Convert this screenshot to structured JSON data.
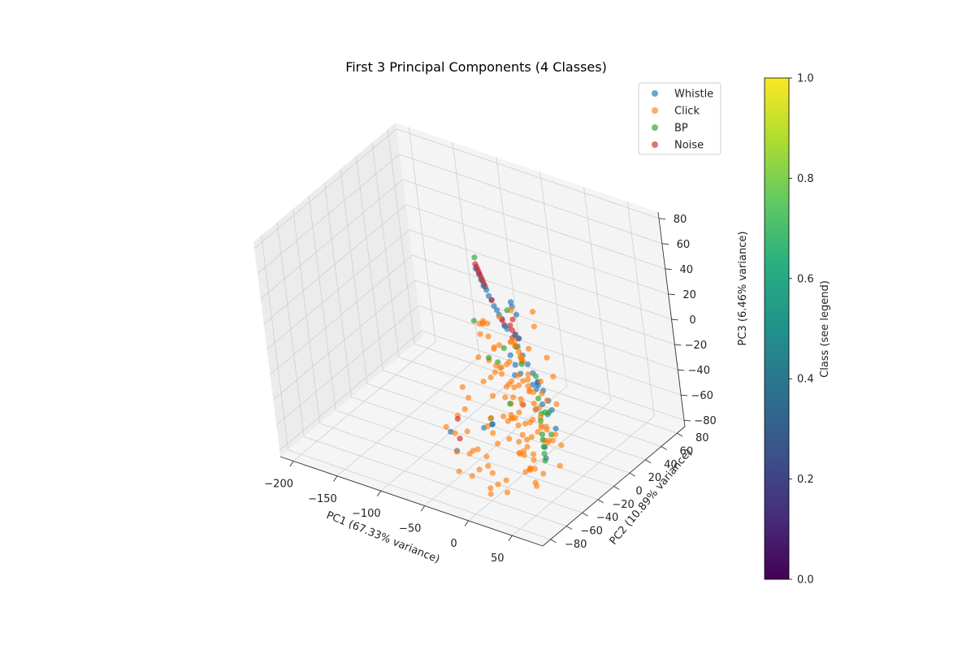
{
  "chart_data": {
    "type": "scatter",
    "projection": "3d",
    "title": "First 3 Principal Components (4 Classes)",
    "xlabel": "PC1 (67.33% variance)",
    "ylabel": "PC2 (10.89% variance)",
    "zlabel": "PC3 (6.46% variance)",
    "xlim": [
      -215,
      85
    ],
    "ylim": [
      -90,
      90
    ],
    "zlim": [
      -85,
      85
    ],
    "x_ticks": [
      -200,
      -150,
      -100,
      -50,
      0,
      50
    ],
    "y_ticks": [
      -80,
      -60,
      -40,
      -20,
      0,
      20,
      40,
      60,
      80
    ],
    "z_ticks": [
      -80,
      -60,
      -40,
      -20,
      0,
      20,
      40,
      60,
      80
    ],
    "grid": true,
    "legend": {
      "position": "top-right",
      "entries": [
        {
          "label": "Whistle",
          "color": "#1f77b4"
        },
        {
          "label": "Click",
          "color": "#ff7f0e"
        },
        {
          "label": "BP",
          "color": "#2ca02c"
        },
        {
          "label": "Noise",
          "color": "#d62728"
        }
      ]
    },
    "colorbar": {
      "label": "Class (see legend)",
      "colormap": "viridis",
      "range": [
        0.0,
        1.0
      ],
      "ticks": [
        "0.0",
        "0.2",
        "0.4",
        "0.6",
        "0.8",
        "1.0"
      ]
    },
    "series": [
      {
        "name": "Whistle",
        "color": "#1f77b4",
        "points": [
          [
            -110,
            60,
            10
          ],
          [
            -100,
            55,
            6
          ],
          [
            -90,
            50,
            3
          ],
          [
            -80,
            45,
            0
          ],
          [
            -70,
            40,
            -3
          ],
          [
            -60,
            35,
            -5
          ],
          [
            -50,
            30,
            -8
          ],
          [
            -40,
            25,
            -10
          ],
          [
            -105,
            58,
            8
          ],
          [
            -95,
            52,
            4
          ],
          [
            -85,
            47,
            1
          ],
          [
            -75,
            42,
            -2
          ],
          [
            -65,
            37,
            -4
          ],
          [
            -30,
            20,
            -12
          ],
          [
            -20,
            15,
            -14
          ],
          [
            -10,
            10,
            -16
          ],
          [
            0,
            5,
            -18
          ],
          [
            10,
            0,
            -20
          ],
          [
            20,
            -5,
            -22
          ],
          [
            30,
            -10,
            -25
          ],
          [
            -5,
            8,
            -30
          ],
          [
            5,
            2,
            -28
          ],
          [
            15,
            -3,
            -35
          ],
          [
            25,
            -8,
            -38
          ],
          [
            35,
            -12,
            -30
          ],
          [
            40,
            -15,
            -42
          ],
          [
            -25,
            10,
            -20
          ],
          [
            -15,
            5,
            -22
          ],
          [
            -45,
            25,
            -25
          ],
          [
            -60,
            -40,
            -55
          ],
          [
            -50,
            -45,
            -65
          ],
          [
            -30,
            -30,
            -50
          ],
          [
            10,
            -30,
            40
          ],
          [
            15,
            -20,
            45
          ],
          [
            5,
            -15,
            50
          ],
          [
            20,
            -25,
            30
          ],
          [
            -10,
            0,
            35
          ],
          [
            0,
            -10,
            20
          ],
          [
            25,
            -40,
            10
          ],
          [
            30,
            -20,
            -5
          ],
          [
            20,
            -10,
            -15
          ],
          [
            35,
            -30,
            -20
          ],
          [
            45,
            -35,
            -45
          ],
          [
            50,
            -40,
            -50
          ],
          [
            -40,
            -10,
            -60
          ],
          [
            -20,
            -30,
            -45
          ]
        ]
      },
      {
        "name": "Click",
        "color": "#ff7f0e",
        "points": [
          [
            -40,
            25,
            -10
          ],
          [
            -35,
            22,
            -11
          ],
          [
            -30,
            19,
            -12
          ],
          [
            -25,
            16,
            -13
          ],
          [
            -20,
            13,
            -14
          ],
          [
            -15,
            10,
            -15
          ],
          [
            0,
            -40,
            45
          ],
          [
            10,
            -35,
            50
          ],
          [
            20,
            -30,
            55
          ],
          [
            30,
            -45,
            40
          ],
          [
            40,
            -50,
            42
          ],
          [
            50,
            -55,
            38
          ],
          [
            45,
            -30,
            48
          ],
          [
            35,
            -20,
            52
          ],
          [
            5,
            -60,
            30
          ],
          [
            15,
            -50,
            35
          ],
          [
            25,
            -60,
            28
          ],
          [
            -5,
            -45,
            38
          ],
          [
            55,
            -65,
            30
          ],
          [
            60,
            -60,
            20
          ],
          [
            10,
            -25,
            25
          ],
          [
            30,
            -35,
            20
          ],
          [
            20,
            -50,
            15
          ],
          [
            40,
            -40,
            10
          ],
          [
            50,
            -45,
            5
          ],
          [
            15,
            -20,
            10
          ],
          [
            -10,
            -20,
            15
          ],
          [
            0,
            -30,
            5
          ],
          [
            45,
            -55,
            0
          ],
          [
            55,
            -50,
            -5
          ],
          [
            40,
            -60,
            -10
          ],
          [
            30,
            -55,
            -15
          ],
          [
            20,
            -45,
            -20
          ],
          [
            35,
            -65,
            -25
          ],
          [
            50,
            -70,
            -30
          ],
          [
            45,
            -60,
            -35
          ],
          [
            60,
            -75,
            -40
          ],
          [
            55,
            -65,
            -45
          ],
          [
            65,
            -70,
            -50
          ],
          [
            40,
            -50,
            -55
          ],
          [
            30,
            -40,
            -40
          ],
          [
            20,
            -30,
            -35
          ],
          [
            10,
            -40,
            -30
          ],
          [
            0,
            -50,
            -25
          ],
          [
            5,
            -35,
            -15
          ],
          [
            25,
            -25,
            -10
          ],
          [
            15,
            -15,
            -5
          ],
          [
            60,
            -45,
            -20
          ],
          [
            70,
            -55,
            -25
          ],
          [
            65,
            -60,
            -15
          ],
          [
            50,
            -35,
            -30
          ],
          [
            45,
            -25,
            -45
          ],
          [
            35,
            -20,
            -50
          ],
          [
            25,
            -15,
            -55
          ],
          [
            55,
            -30,
            -60
          ],
          [
            70,
            -40,
            -35
          ],
          [
            75,
            -50,
            -20
          ],
          [
            60,
            -30,
            -10
          ],
          [
            -60,
            -20,
            -30
          ],
          [
            -50,
            -30,
            -40
          ],
          [
            -40,
            -40,
            -50
          ],
          [
            -30,
            -50,
            -60
          ],
          [
            -20,
            -60,
            -70
          ],
          [
            -10,
            -50,
            -65
          ],
          [
            0,
            -60,
            -75
          ],
          [
            10,
            -70,
            -72
          ],
          [
            -55,
            -40,
            -55
          ],
          [
            -45,
            -50,
            -62
          ],
          [
            -35,
            -60,
            -70
          ],
          [
            -25,
            -45,
            -58
          ],
          [
            -15,
            -35,
            -48
          ],
          [
            -65,
            -10,
            -45
          ],
          [
            -70,
            -20,
            -55
          ],
          [
            -75,
            -30,
            -60
          ],
          [
            -55,
            0,
            -35
          ],
          [
            -45,
            5,
            -28
          ],
          [
            -35,
            10,
            -22
          ],
          [
            -25,
            0,
            -30
          ],
          [
            -15,
            -10,
            -38
          ],
          [
            -5,
            -20,
            -42
          ],
          [
            5,
            -10,
            -48
          ],
          [
            15,
            -20,
            -52
          ],
          [
            25,
            -30,
            -58
          ],
          [
            35,
            -40,
            -62
          ],
          [
            45,
            -50,
            -68
          ],
          [
            20,
            -60,
            -64
          ],
          [
            30,
            -70,
            -66
          ],
          [
            0,
            -70,
            -55
          ],
          [
            -10,
            -65,
            -45
          ],
          [
            10,
            -55,
            -40
          ],
          [
            -20,
            -25,
            -25
          ],
          [
            -30,
            -15,
            -18
          ],
          [
            -40,
            -5,
            -12
          ],
          [
            65,
            -50,
            10
          ],
          [
            70,
            -60,
            5
          ],
          [
            75,
            -65,
            -5
          ],
          [
            60,
            -70,
            15
          ],
          [
            50,
            -75,
            25
          ],
          [
            40,
            -70,
            35
          ],
          [
            30,
            -65,
            45
          ],
          [
            20,
            -60,
            50
          ],
          [
            10,
            -55,
            55
          ],
          [
            0,
            -45,
            48
          ],
          [
            -10,
            -35,
            42
          ],
          [
            -20,
            -30,
            35
          ],
          [
            25,
            -45,
            -5
          ],
          [
            35,
            -50,
            -12
          ],
          [
            45,
            -45,
            -18
          ],
          [
            15,
            -35,
            0
          ],
          [
            5,
            -25,
            8
          ],
          [
            55,
            -40,
            12
          ],
          [
            65,
            -45,
            2
          ],
          [
            35,
            -30,
            28
          ],
          [
            45,
            -20,
            18
          ],
          [
            55,
            -25,
            8
          ],
          [
            40,
            -55,
            -42
          ],
          [
            50,
            -60,
            -48
          ],
          [
            60,
            -55,
            -52
          ],
          [
            30,
            -50,
            -46
          ],
          [
            20,
            -40,
            -44
          ],
          [
            -5,
            -30,
            -35
          ],
          [
            -15,
            -40,
            -40
          ],
          [
            10,
            -65,
            -58
          ],
          [
            20,
            -70,
            -62
          ],
          [
            0,
            -60,
            -50
          ],
          [
            38,
            -52,
            -28
          ],
          [
            48,
            -58,
            -32
          ],
          [
            58,
            -62,
            -38
          ],
          [
            28,
            -46,
            -26
          ],
          [
            62,
            -52,
            -8
          ],
          [
            52,
            -48,
            -2
          ],
          [
            42,
            -42,
            2
          ],
          [
            32,
            -38,
            6
          ],
          [
            22,
            -34,
            -2
          ],
          [
            12,
            -30,
            -8
          ],
          [
            68,
            -58,
            -12
          ]
        ]
      },
      {
        "name": "BP",
        "color": "#2ca02c",
        "points": [
          [
            -115,
            65,
            15
          ],
          [
            -40,
            -5,
            -10
          ],
          [
            -35,
            0,
            -15
          ],
          [
            10,
            -25,
            50
          ],
          [
            25,
            -35,
            30
          ],
          [
            40,
            -45,
            25
          ],
          [
            50,
            -40,
            15
          ],
          [
            60,
            -50,
            5
          ],
          [
            70,
            -60,
            -5
          ],
          [
            75,
            -65,
            -12
          ],
          [
            80,
            -70,
            -18
          ],
          [
            82,
            -72,
            -22
          ],
          [
            84,
            -74,
            -26
          ],
          [
            78,
            -68,
            -14
          ],
          [
            55,
            -35,
            -15
          ],
          [
            45,
            -30,
            -20
          ],
          [
            -10,
            -15,
            10
          ],
          [
            -20,
            -30,
            -40
          ],
          [
            30,
            -20,
            -30
          ],
          [
            65,
            -45,
            -25
          ],
          [
            0,
            -55,
            55
          ],
          [
            15,
            -40,
            -15
          ]
        ]
      },
      {
        "name": "Noise",
        "color": "#d62728",
        "points": [
          [
            -112,
            62,
            12
          ],
          [
            -110,
            61,
            11
          ],
          [
            -108,
            60,
            10
          ],
          [
            -106,
            59,
            9
          ],
          [
            -104,
            58,
            8
          ],
          [
            -102,
            57,
            7
          ],
          [
            -100,
            56,
            6
          ],
          [
            -98,
            55,
            5
          ],
          [
            -96,
            54,
            4
          ],
          [
            -94,
            53,
            3
          ],
          [
            -80,
            45,
            0
          ],
          [
            -60,
            35,
            -6
          ],
          [
            -55,
            32,
            -7
          ],
          [
            -20,
            5,
            15
          ],
          [
            -15,
            2,
            14
          ],
          [
            -10,
            0,
            13
          ],
          [
            -5,
            -2,
            12
          ],
          [
            10,
            -20,
            40
          ],
          [
            20,
            -30,
            -20
          ],
          [
            -60,
            -30,
            -50
          ],
          [
            -50,
            -40,
            -58
          ]
        ]
      }
    ]
  }
}
